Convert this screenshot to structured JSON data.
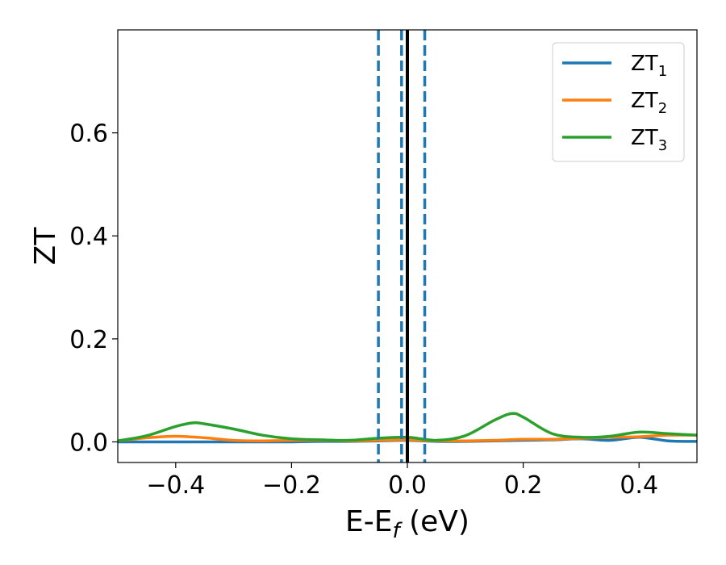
{
  "chart_data": {
    "type": "line",
    "xlabel": {
      "main": "E-E",
      "sub": "f",
      "suffix": " (eV)"
    },
    "ylabel": "ZT",
    "xlim": [
      -0.5,
      0.5
    ],
    "ylim": [
      -0.04,
      0.8
    ],
    "xticks": [
      -0.4,
      -0.2,
      0.0,
      0.2,
      0.4
    ],
    "xtick_labels": [
      "−0.4",
      "−0.2",
      "0.0",
      "0.2",
      "0.4"
    ],
    "yticks": [
      0.0,
      0.2,
      0.4,
      0.6
    ],
    "ytick_labels": [
      "0.0",
      "0.2",
      "0.4",
      "0.6"
    ],
    "grid": false,
    "legend_position": "top-right",
    "vlines": [
      {
        "x": -0.05,
        "style": "dashed",
        "color": "#1f77b4"
      },
      {
        "x": -0.01,
        "style": "dashed",
        "color": "#1f77b4"
      },
      {
        "x": 0.0,
        "style": "solid",
        "color": "#000000"
      },
      {
        "x": 0.03,
        "style": "dashed",
        "color": "#1f77b4"
      }
    ],
    "series": [
      {
        "name": "ZT",
        "sub": "1",
        "color": "#1f77b4",
        "x": [
          -0.5,
          -0.45,
          -0.4,
          -0.35,
          -0.3,
          -0.25,
          -0.2,
          -0.15,
          -0.1,
          -0.05,
          0.0,
          0.05,
          0.1,
          0.15,
          0.2,
          0.25,
          0.3,
          0.35,
          0.4,
          0.45,
          0.5
        ],
        "y": [
          0.0,
          0.0,
          0.0,
          0.0,
          0.0,
          0.0,
          0.0,
          0.001,
          0.001,
          0.002,
          0.003,
          0.001,
          0.001,
          0.002,
          0.003,
          0.004,
          0.006,
          0.003,
          0.009,
          0.002,
          0.001
        ]
      },
      {
        "name": "ZT",
        "sub": "2",
        "color": "#ff7f0e",
        "x": [
          -0.5,
          -0.45,
          -0.4,
          -0.35,
          -0.3,
          -0.25,
          -0.2,
          -0.15,
          -0.1,
          -0.05,
          0.0,
          0.05,
          0.1,
          0.15,
          0.2,
          0.25,
          0.3,
          0.35,
          0.4,
          0.45,
          0.5
        ],
        "y": [
          0.002,
          0.008,
          0.011,
          0.008,
          0.003,
          0.002,
          0.003,
          0.003,
          0.002,
          0.003,
          0.004,
          0.002,
          0.002,
          0.003,
          0.005,
          0.005,
          0.007,
          0.009,
          0.01,
          0.013,
          0.013
        ]
      },
      {
        "name": "ZT",
        "sub": "3",
        "color": "#2ca02c",
        "x": [
          -0.5,
          -0.45,
          -0.4,
          -0.37,
          -0.35,
          -0.3,
          -0.25,
          -0.2,
          -0.15,
          -0.1,
          -0.05,
          0.0,
          0.05,
          0.1,
          0.15,
          0.18,
          0.2,
          0.25,
          0.3,
          0.35,
          0.4,
          0.45,
          0.5
        ],
        "y": [
          0.002,
          0.012,
          0.03,
          0.037,
          0.035,
          0.025,
          0.013,
          0.006,
          0.004,
          0.003,
          0.007,
          0.009,
          0.003,
          0.012,
          0.042,
          0.055,
          0.048,
          0.016,
          0.009,
          0.011,
          0.019,
          0.016,
          0.013
        ]
      }
    ]
  }
}
